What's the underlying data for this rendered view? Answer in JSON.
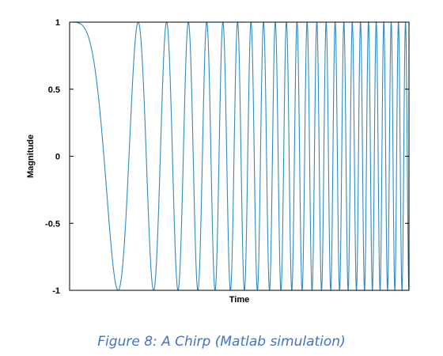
{
  "chart_data": {
    "type": "line",
    "title": "",
    "xlabel": "Time",
    "ylabel": "Magnitude",
    "ylim": [
      -1,
      1
    ],
    "yticks": [
      {
        "value": 1,
        "label": "1"
      },
      {
        "value": 0.5,
        "label": "0.5"
      },
      {
        "value": 0,
        "label": "0"
      },
      {
        "value": -0.5,
        "label": "-0.5"
      },
      {
        "value": -1,
        "label": "-1"
      }
    ],
    "xticks": [],
    "grid": false,
    "legend": "none",
    "line_color": "#2e8bc0",
    "series": [
      {
        "function": "cos",
        "cycles_shown": 24.5,
        "sweep": "linear chirp, frequency increasing with time"
      }
    ]
  },
  "caption": "Figure 8: A Chirp (Matlab simulation)",
  "colors": {
    "caption": "#4472c4",
    "axes": "#000000"
  }
}
